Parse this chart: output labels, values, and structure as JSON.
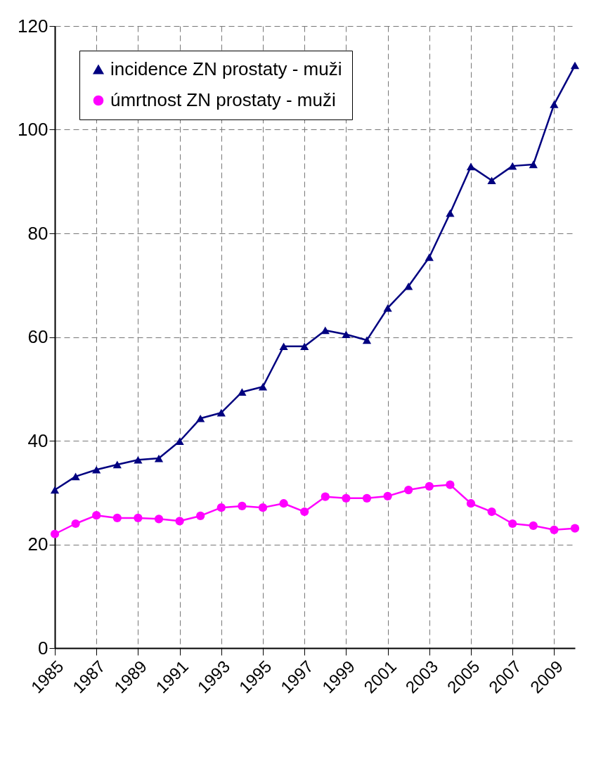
{
  "chart_data": {
    "type": "line",
    "x": [
      1985,
      1986,
      1987,
      1988,
      1989,
      1990,
      1991,
      1992,
      1993,
      1994,
      1995,
      1996,
      1997,
      1998,
      1999,
      2000,
      2001,
      2002,
      2003,
      2004,
      2005,
      2006,
      2007,
      2008,
      2009,
      2010
    ],
    "series": [
      {
        "name": "incidence ZN prostaty - muži",
        "color": "#000080",
        "marker": "triangle",
        "values": [
          30.5,
          33.1,
          34.4,
          35.4,
          36.3,
          36.6,
          39.9,
          44.3,
          45.4,
          49.4,
          50.4,
          58.2,
          58.2,
          61.3,
          60.5,
          59.4,
          65.6,
          69.8,
          75.4,
          83.9,
          92.9,
          90.2,
          93.0,
          93.3,
          104.9,
          112.4
        ]
      },
      {
        "name": "úmrtnost ZN prostaty - muži",
        "color": "#ff00ff",
        "marker": "circle",
        "values": [
          22.0,
          24.0,
          25.6,
          25.1,
          25.1,
          24.9,
          24.5,
          25.5,
          27.1,
          27.4,
          27.1,
          27.9,
          26.3,
          29.2,
          28.9,
          28.9,
          29.3,
          30.5,
          31.2,
          31.5,
          27.9,
          26.3,
          24.0,
          23.6,
          22.8,
          23.1
        ]
      }
    ],
    "xlim": [
      1985,
      2010
    ],
    "xticks": [
      1985,
      1987,
      1989,
      1991,
      1993,
      1995,
      1997,
      1999,
      2001,
      2003,
      2005,
      2007,
      2009
    ],
    "ylim": [
      0,
      120
    ],
    "yticks": [
      0,
      20,
      40,
      60,
      80,
      100,
      120
    ],
    "grid": true,
    "legend": "top left",
    "line_style": "solid"
  }
}
